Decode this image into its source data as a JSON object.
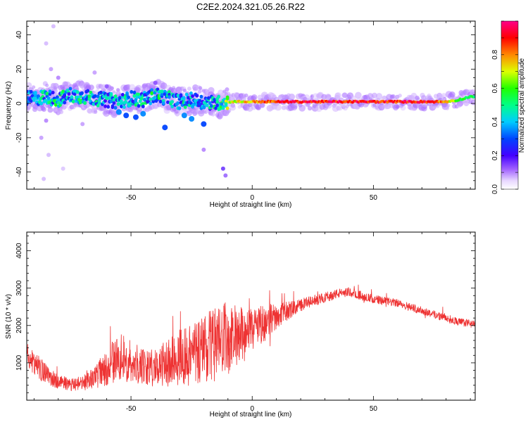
{
  "title": "C2E2.2024.321.05.26.R22",
  "colors": {
    "snr_line": "#ee3333",
    "spec_low": "#e8d8ff",
    "spec_mid": "#4400ff",
    "spec_high": "#ff0000"
  },
  "chart_data": [
    {
      "type": "heatmap",
      "xlabel": "Height of straight line (km)",
      "ylabel": "Frequency (Hz)",
      "colorbar_label": "Normalized spectral amplitude",
      "xlim": [
        -93,
        92
      ],
      "ylim": [
        -50,
        48
      ],
      "xticks": [
        "-50",
        "0",
        "50"
      ],
      "yticks": [
        "-40",
        "-20",
        "0",
        "20",
        "40"
      ],
      "colorbar_ticks": [
        "0.0",
        "0.2",
        "0.4",
        "0.6",
        "0.8"
      ],
      "colorbar_range": [
        0,
        1
      ],
      "grid": false,
      "ridge": [
        {
          "x": -90,
          "f": 3,
          "a": 0.45
        },
        {
          "x": -85,
          "f": 4,
          "a": 0.5
        },
        {
          "x": -80,
          "f": 2,
          "a": 0.55
        },
        {
          "x": -75,
          "f": 5,
          "a": 0.5
        },
        {
          "x": -70,
          "f": 4,
          "a": 0.55
        },
        {
          "x": -65,
          "f": 3,
          "a": 0.5
        },
        {
          "x": -60,
          "f": 2,
          "a": 0.45
        },
        {
          "x": -55,
          "f": 1,
          "a": 0.5
        },
        {
          "x": -50,
          "f": 3,
          "a": 0.5
        },
        {
          "x": -45,
          "f": 2,
          "a": 0.5
        },
        {
          "x": -40,
          "f": 5,
          "a": 0.55
        },
        {
          "x": -35,
          "f": 3,
          "a": 0.5
        },
        {
          "x": -30,
          "f": 1,
          "a": 0.5
        },
        {
          "x": -25,
          "f": 2,
          "a": 0.5
        },
        {
          "x": -20,
          "f": 1,
          "a": 0.45
        },
        {
          "x": -15,
          "f": 0,
          "a": 0.55
        },
        {
          "x": -10,
          "f": 1,
          "a": 0.7
        },
        {
          "x": -5,
          "f": 1,
          "a": 0.75
        },
        {
          "x": 0,
          "f": 1,
          "a": 0.8
        },
        {
          "x": 5,
          "f": 1,
          "a": 0.9
        },
        {
          "x": 10,
          "f": 1,
          "a": 0.9
        },
        {
          "x": 15,
          "f": 1,
          "a": 0.95
        },
        {
          "x": 20,
          "f": 1,
          "a": 0.95
        },
        {
          "x": 25,
          "f": 1,
          "a": 0.95
        },
        {
          "x": 30,
          "f": 1,
          "a": 0.95
        },
        {
          "x": 35,
          "f": 1,
          "a": 0.95
        },
        {
          "x": 40,
          "f": 1,
          "a": 0.95
        },
        {
          "x": 45,
          "f": 1,
          "a": 0.95
        },
        {
          "x": 50,
          "f": 1,
          "a": 0.95
        },
        {
          "x": 55,
          "f": 1,
          "a": 0.95
        },
        {
          "x": 60,
          "f": 1,
          "a": 0.95
        },
        {
          "x": 65,
          "f": 1,
          "a": 0.95
        },
        {
          "x": 70,
          "f": 1,
          "a": 0.95
        },
        {
          "x": 75,
          "f": 1,
          "a": 0.9
        },
        {
          "x": 80,
          "f": 1,
          "a": 0.8
        },
        {
          "x": 85,
          "f": 2,
          "a": 0.6
        },
        {
          "x": 90,
          "f": 4,
          "a": 0.55
        }
      ],
      "blobs": [
        {
          "x": -85,
          "f": -10,
          "a": 0.12
        },
        {
          "x": -87,
          "f": -20,
          "a": 0.1
        },
        {
          "x": -84,
          "f": -30,
          "a": 0.08
        },
        {
          "x": -86,
          "f": -44,
          "a": 0.08
        },
        {
          "x": -83,
          "f": 20,
          "a": 0.1
        },
        {
          "x": -85,
          "f": 35,
          "a": 0.08
        },
        {
          "x": -82,
          "f": 45,
          "a": 0.08
        },
        {
          "x": -80,
          "f": 15,
          "a": 0.12
        },
        {
          "x": -78,
          "f": -38,
          "a": 0.07
        },
        {
          "x": -70,
          "f": -12,
          "a": 0.1
        },
        {
          "x": -65,
          "f": 18,
          "a": 0.1
        },
        {
          "x": -55,
          "f": -5,
          "a": 0.35
        },
        {
          "x": -52,
          "f": -7,
          "a": 0.3
        },
        {
          "x": -48,
          "f": -8,
          "a": 0.3
        },
        {
          "x": -45,
          "f": -6,
          "a": 0.35
        },
        {
          "x": -36,
          "f": -14,
          "a": 0.3
        },
        {
          "x": -28,
          "f": -7,
          "a": 0.35
        },
        {
          "x": -25,
          "f": -9,
          "a": 0.35
        },
        {
          "x": -20,
          "f": -12,
          "a": 0.3
        },
        {
          "x": -20,
          "f": -27,
          "a": 0.12
        },
        {
          "x": -12,
          "f": -38,
          "a": 0.2
        },
        {
          "x": -11,
          "f": -42,
          "a": 0.15
        },
        {
          "x": -60,
          "f": 10,
          "a": 0.15
        },
        {
          "x": -40,
          "f": 12,
          "a": 0.15
        }
      ]
    },
    {
      "type": "line",
      "xlabel": "Height of straight line (km)",
      "ylabel": "SNR (10 * v/v)",
      "xlim": [
        -93,
        92
      ],
      "ylim": [
        0,
        4500
      ],
      "xticks": [
        "-50",
        "0",
        "50"
      ],
      "yticks": [
        "1000",
        "2000",
        "3000",
        "4000"
      ],
      "grid": false,
      "series": [
        {
          "x": [
            -93,
            -90,
            -85,
            -80,
            -75,
            -70,
            -65,
            -60,
            -55,
            -50,
            -45,
            -40,
            -35,
            -30,
            -25,
            -20,
            -15,
            -10,
            -5,
            0,
            5,
            10,
            15,
            20,
            25,
            30,
            35,
            40,
            45,
            50,
            55,
            60,
            65,
            70,
            75,
            80,
            85,
            90,
            92
          ],
          "y": [
            1200,
            1000,
            700,
            500,
            420,
            450,
            600,
            900,
            1150,
            1050,
            900,
            850,
            1000,
            1150,
            1250,
            1350,
            1500,
            1650,
            1750,
            1900,
            2050,
            2250,
            2400,
            2550,
            2650,
            2750,
            2850,
            2900,
            2800,
            2700,
            2650,
            2600,
            2500,
            2400,
            2300,
            2200,
            2100,
            2050,
            2000
          ],
          "noise": [
            700,
            700,
            550,
            400,
            350,
            400,
            600,
            1000,
            1300,
            1200,
            1000,
            1000,
            1300,
            1600,
            1800,
            1900,
            2000,
            2000,
            1500,
            1200,
            1000,
            700,
            500,
            350,
            300,
            280,
            260,
            250,
            250,
            250,
            230,
            220,
            220,
            220,
            220,
            220,
            220,
            220,
            220
          ]
        }
      ]
    }
  ]
}
